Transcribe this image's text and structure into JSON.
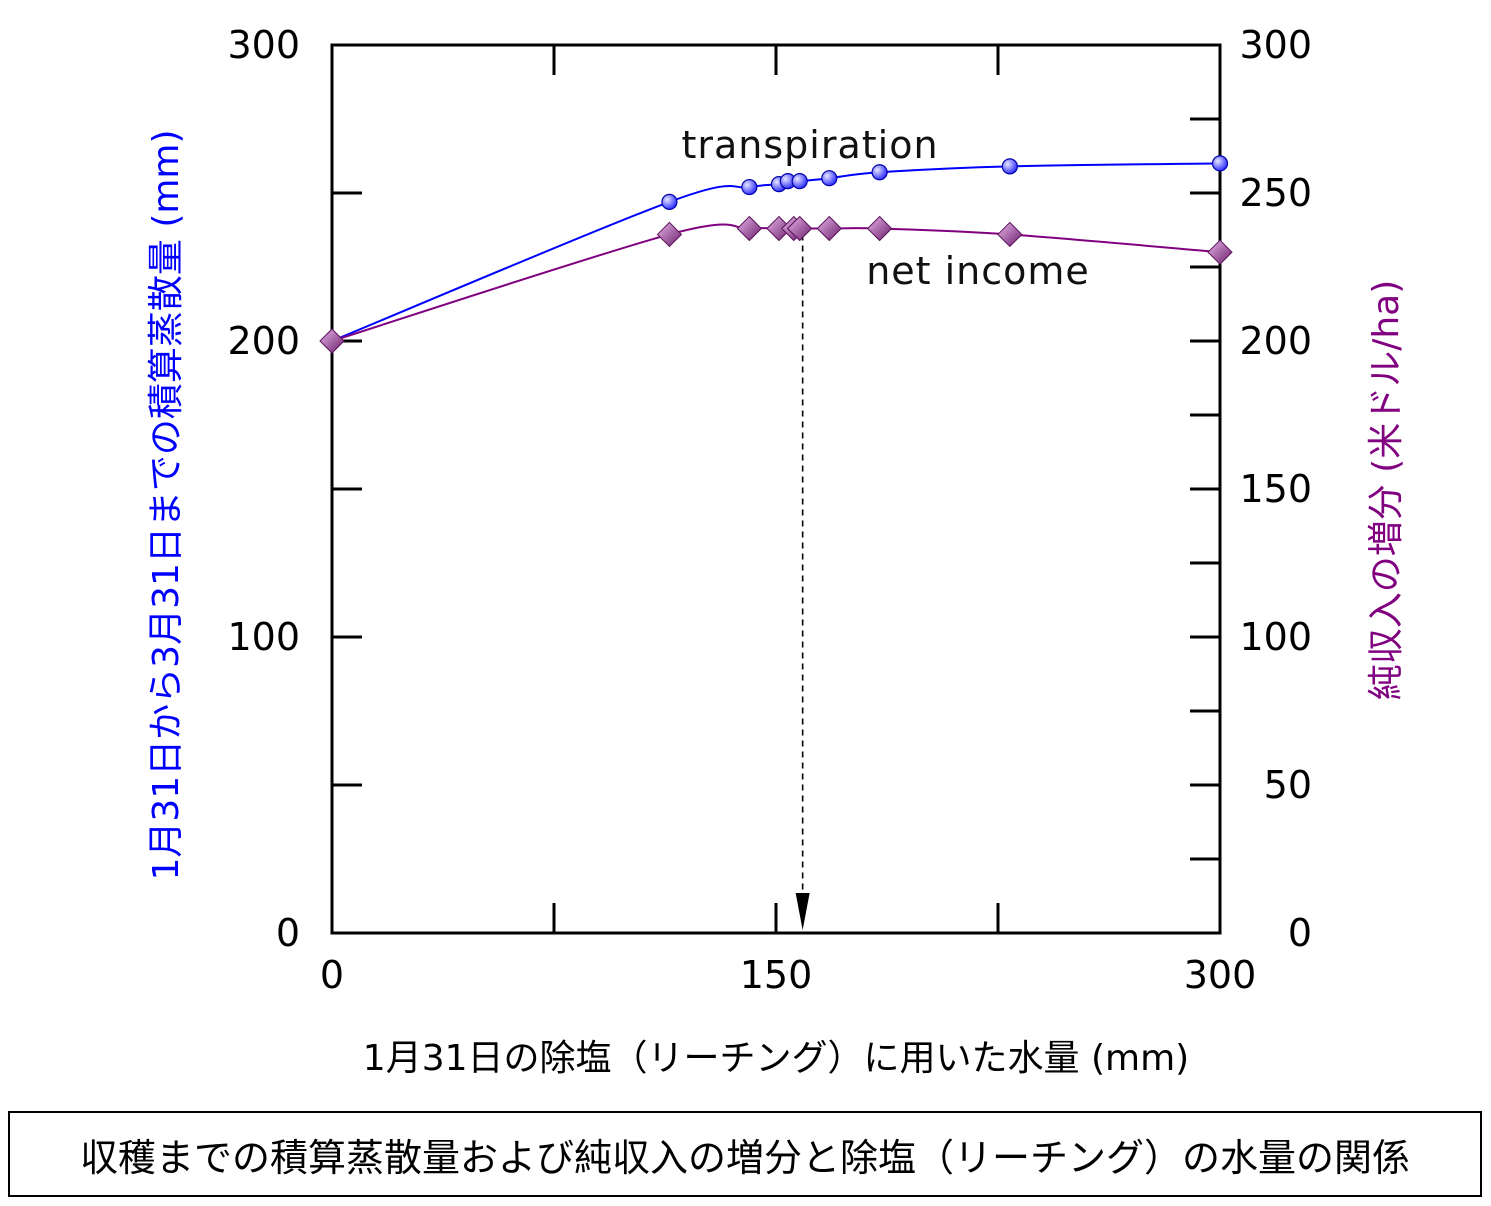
{
  "chart_data": {
    "type": "line",
    "xlabel": "1月31日の除塩（リーチング）に用いた水量 (mm)",
    "ylabel_left": "1月31日から3月31日までの積算蒸散量 (mm)",
    "ylabel_right": "純収入の増分 (米ドル/ha)",
    "xlim": [
      0,
      300
    ],
    "ylim_left": [
      0,
      300
    ],
    "ylim_right": [
      0,
      300
    ],
    "x_ticks": [
      "0",
      "150",
      "300"
    ],
    "y_left_ticks": [
      "0",
      "100",
      "200",
      "300"
    ],
    "y_right_ticks": [
      "0",
      "50",
      "100",
      "150",
      "200",
      "250",
      "300"
    ],
    "grid": false,
    "series": [
      {
        "name": "transpiration",
        "axis": "left",
        "color": "#0000ff",
        "marker": "circle",
        "x": [
          0,
          114,
          141,
          151,
          154,
          158,
          168,
          185,
          229,
          300
        ],
        "y": [
          200,
          247,
          252,
          253,
          254,
          254,
          255,
          257,
          259,
          260
        ]
      },
      {
        "name": "net income",
        "axis": "right",
        "color": "#800080",
        "marker": "diamond",
        "x": [
          0,
          114,
          141,
          151,
          156,
          158,
          168,
          185,
          229,
          300
        ],
        "y": [
          200,
          236,
          238,
          238,
          238,
          238,
          238,
          238,
          236,
          230
        ]
      }
    ],
    "optimum_arrow_x": 159,
    "annotations": [
      "transpiration",
      "net income"
    ]
  },
  "caption": "収穫までの積算蒸散量および純収入の増分と除塩（リーチング）の水量の関係",
  "colors": {
    "transpiration": "#0000ff",
    "net_income": "#800080",
    "axis": "#000000"
  }
}
